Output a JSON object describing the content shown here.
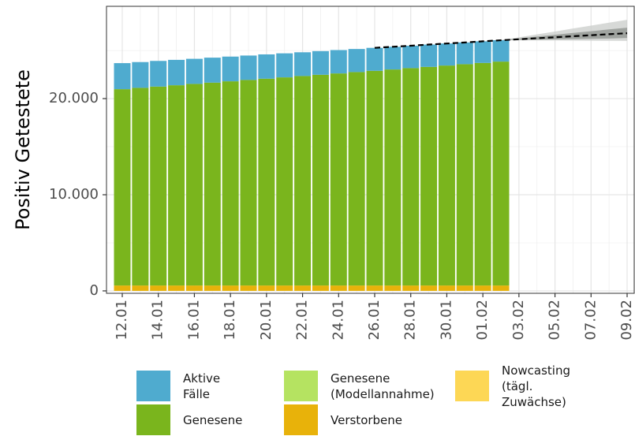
{
  "chart_data": {
    "type": "bar",
    "stacked": true,
    "y_label": "Positiv Getestete",
    "categories": [
      "12.01",
      null,
      "14.01",
      null,
      "16.01",
      null,
      "18.01",
      null,
      "20.01",
      null,
      "22.01",
      null,
      "24.01",
      null,
      "26.01",
      null,
      "28.01",
      null,
      "30.01",
      null,
      "01.02",
      null,
      "03.02",
      null,
      "05.02",
      null,
      "07.02",
      null,
      "09.02"
    ],
    "series": [
      {
        "name": "Aktive Fälle",
        "color": "#4fabcf",
        "values": [
          2710,
          2680,
          2670,
          2640,
          2610,
          2600,
          2570,
          2540,
          2530,
          2500,
          2470,
          2460,
          2430,
          2400,
          2390,
          2360,
          2330,
          2320,
          2290,
          2260,
          2250,
          2220,
          null,
          null,
          null,
          null,
          null,
          null,
          null
        ]
      },
      {
        "name": "Genesene",
        "color": "#7ab51d",
        "values": [
          20420,
          20560,
          20690,
          20830,
          20970,
          21100,
          21240,
          21380,
          21510,
          21650,
          21790,
          21920,
          22060,
          22200,
          22330,
          22470,
          22610,
          22740,
          22880,
          23020,
          23150,
          23290,
          null,
          null,
          null,
          null,
          null,
          null,
          null
        ]
      },
      {
        "name": "Genesene\n(Modellannahme)",
        "color": "#b5e361",
        "values": [
          null,
          null,
          null,
          null,
          null,
          null,
          null,
          null,
          null,
          null,
          null,
          null,
          null,
          null,
          null,
          null,
          null,
          null,
          null,
          null,
          null,
          null,
          null,
          null,
          null,
          null,
          null,
          null,
          null
        ]
      },
      {
        "name": "Verstorbene",
        "color": "#e8b20a",
        "values": [
          560,
          560,
          560,
          560,
          560,
          560,
          560,
          560,
          560,
          560,
          560,
          560,
          560,
          560,
          560,
          560,
          560,
          560,
          560,
          560,
          560,
          560,
          null,
          null,
          null,
          null,
          null,
          null,
          null
        ]
      },
      {
        "name": "Nowcasting\n(tägl. Zuwächse)",
        "color": "#fdd755",
        "values": [
          null,
          null,
          null,
          null,
          null,
          null,
          null,
          null,
          null,
          null,
          null,
          null,
          null,
          null,
          null,
          null,
          null,
          null,
          null,
          null,
          null,
          null,
          null,
          null,
          null,
          null,
          null,
          null,
          null
        ]
      }
    ],
    "forecast": {
      "color": "#000000",
      "values": [
        null,
        null,
        null,
        null,
        null,
        null,
        null,
        null,
        null,
        null,
        null,
        null,
        null,
        null,
        25280,
        25390,
        25500,
        25620,
        25730,
        25840,
        25960,
        26070,
        26170,
        26280,
        26380,
        26490,
        26590,
        26700,
        26800
      ]
    },
    "bands": [
      {
        "color": "#c9ccc9",
        "lower": [
          null,
          null,
          null,
          null,
          null,
          null,
          null,
          null,
          null,
          null,
          null,
          null,
          null,
          null,
          null,
          null,
          null,
          null,
          null,
          null,
          null,
          26070,
          26060,
          26050,
          26040,
          26030,
          26020,
          26010,
          26000
        ],
        "upper": [
          null,
          null,
          null,
          null,
          null,
          null,
          null,
          null,
          null,
          null,
          null,
          null,
          null,
          null,
          null,
          null,
          null,
          null,
          null,
          null,
          null,
          26070,
          26370,
          26680,
          26980,
          27290,
          27590,
          27900,
          28200
        ]
      },
      {
        "color": "#8e928e",
        "lower": [
          null,
          null,
          null,
          null,
          null,
          null,
          null,
          null,
          null,
          null,
          null,
          null,
          null,
          null,
          null,
          null,
          null,
          null,
          null,
          null,
          null,
          26070,
          26100,
          26130,
          26160,
          26190,
          26220,
          26250,
          26310
        ],
        "upper": [
          null,
          null,
          null,
          null,
          null,
          null,
          null,
          null,
          null,
          null,
          null,
          null,
          null,
          null,
          null,
          null,
          null,
          null,
          null,
          null,
          null,
          26070,
          26260,
          26450,
          26640,
          26830,
          27010,
          27200,
          27380
        ]
      }
    ],
    "ylim": [
      -250,
      29600
    ],
    "yticks": [
      0,
      {
        "value": 10000,
        "label": "10.000"
      },
      {
        "value": 20000,
        "label": "20.000"
      }
    ],
    "yminor": [
      5000,
      15000,
      25000
    ],
    "grid": true
  }
}
